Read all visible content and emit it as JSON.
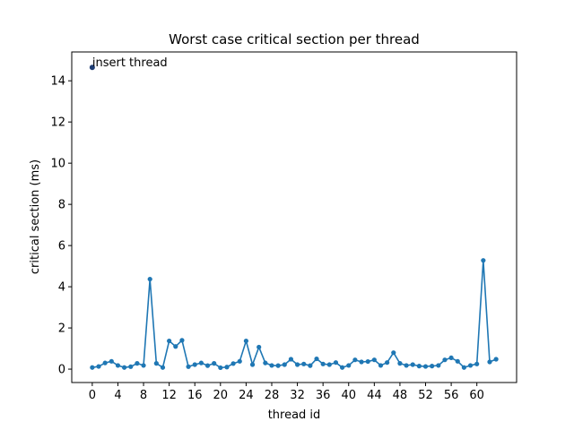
{
  "chart_data": {
    "type": "line",
    "title": "Worst case critical section per thread",
    "xlabel": "thread id",
    "ylabel": "critical section (ms)",
    "xlim": [
      -3.2,
      66.2
    ],
    "ylim": [
      -0.65,
      15.4
    ],
    "xticks": [
      0,
      4,
      8,
      12,
      16,
      20,
      24,
      28,
      32,
      36,
      40,
      44,
      48,
      52,
      56,
      60
    ],
    "yticks": [
      0,
      2,
      4,
      6,
      8,
      10,
      12,
      14
    ],
    "grid": false,
    "series": [
      {
        "color": "#1f77b4",
        "marker": "circle",
        "x": [
          1,
          2,
          3,
          4,
          5,
          6,
          7,
          8,
          9,
          10,
          11,
          12,
          13,
          14,
          15,
          16,
          17,
          18,
          19,
          20,
          21,
          22,
          23,
          24,
          25,
          26,
          27,
          28,
          29,
          30,
          31,
          32,
          33,
          34,
          35,
          36,
          37,
          38,
          39,
          40,
          41,
          42,
          43,
          44,
          45,
          46,
          47,
          48,
          49,
          50,
          51,
          52,
          53,
          54,
          55,
          56,
          57,
          58,
          59,
          60,
          61,
          62,
          63
        ],
        "y": [
          0.13,
          0.3,
          0.38,
          0.18,
          0.08,
          0.12,
          0.28,
          0.18,
          4.37,
          0.28,
          0.08,
          1.37,
          1.1,
          1.4,
          0.12,
          0.22,
          0.3,
          0.17,
          0.28,
          0.07,
          0.1,
          0.27,
          0.38,
          1.37,
          0.22,
          1.07,
          0.3,
          0.18,
          0.17,
          0.22,
          0.48,
          0.22,
          0.25,
          0.17,
          0.5,
          0.25,
          0.22,
          0.32,
          0.08,
          0.18,
          0.45,
          0.35,
          0.37,
          0.45,
          0.18,
          0.32,
          0.8,
          0.28,
          0.18,
          0.22,
          0.15,
          0.13,
          0.15,
          0.18,
          0.45,
          0.55,
          0.38,
          0.08,
          0.18,
          0.25,
          5.28,
          0.35,
          0.48
        ]
      }
    ],
    "highlight_point": {
      "x": 0,
      "y": 14.65,
      "color": "#1f3d73",
      "label": "insert thread"
    },
    "line_start": {
      "x": 0,
      "y": 0.08
    },
    "line_end": {
      "x": 63,
      "y": 0.08
    }
  }
}
